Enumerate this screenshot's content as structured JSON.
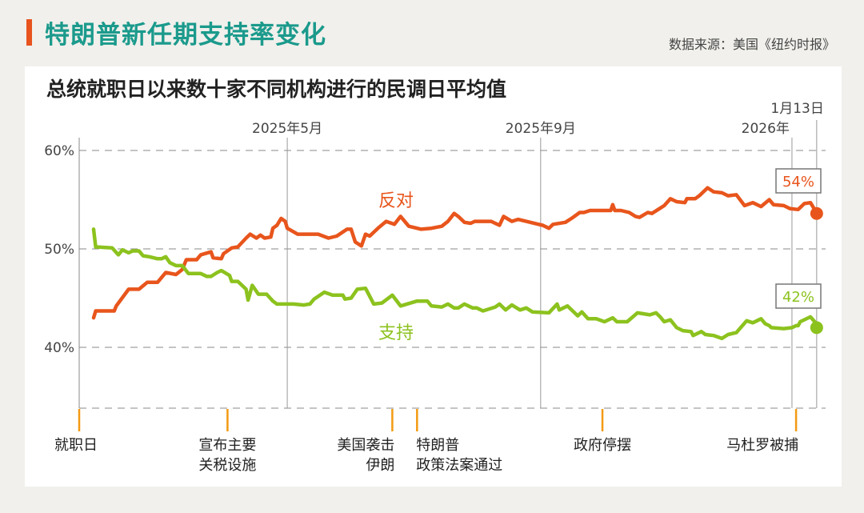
{
  "header": {
    "title": "特朗普新任期支持率变化",
    "source": "数据来源：美国《纽约时报》"
  },
  "colors": {
    "accent": "#e8531e",
    "title": "#1b9a8c",
    "oppose": "#e8551c",
    "approve": "#8cc21e"
  },
  "chart_data": {
    "type": "line",
    "title": "总统就职日以来数十家不同机构进行的民调日平均值",
    "ylim": [
      34,
      61
    ],
    "xlim": [
      "2025-01-20",
      "2026-01-13"
    ],
    "grid": "dashed horizontal",
    "y_ticks": [
      {
        "value": 60,
        "label": "60%"
      },
      {
        "value": 50,
        "label": "50%"
      },
      {
        "value": 40,
        "label": "40%"
      }
    ],
    "x_markers": [
      {
        "date": "2025-05-01",
        "label": "2025年5月"
      },
      {
        "date": "2025-09-01",
        "label": "2025年9月"
      },
      {
        "date": "2026-01-01",
        "label": "2026年"
      },
      {
        "date": "2026-01-13",
        "label": "1月13日"
      }
    ],
    "events": [
      {
        "date": "2025-01-20",
        "lines": [
          "就职日"
        ],
        "align": "start"
      },
      {
        "date": "2025-04-02",
        "lines": [
          "宣布主要",
          "关税设施"
        ],
        "align": "middle"
      },
      {
        "date": "2025-06-21",
        "lines": [
          "美国袭击",
          "伊朗"
        ],
        "align": "end"
      },
      {
        "date": "2025-07-03",
        "lines": [
          "特朗普",
          "政策法案通过"
        ],
        "align": "start"
      },
      {
        "date": "2025-10-01",
        "lines": [
          "政府停摆"
        ],
        "align": "middle"
      },
      {
        "date": "2026-01-03",
        "lines": [
          "马杜罗被捕"
        ],
        "align": "end"
      }
    ],
    "series": [
      {
        "name": "反对",
        "color": "#e8551c",
        "final_label": "54%",
        "points": [
          [
            "2025-01-27",
            43.0
          ],
          [
            "2025-01-28",
            43.7
          ],
          [
            "2025-02-06",
            43.7
          ],
          [
            "2025-02-07",
            44.2
          ],
          [
            "2025-02-13",
            45.9
          ],
          [
            "2025-02-18",
            45.9
          ],
          [
            "2025-02-22",
            46.6
          ],
          [
            "2025-02-27",
            46.6
          ],
          [
            "2025-03-03",
            47.6
          ],
          [
            "2025-03-08",
            47.4
          ],
          [
            "2025-03-11",
            47.9
          ],
          [
            "2025-03-13",
            48.9
          ],
          [
            "2025-03-18",
            48.9
          ],
          [
            "2025-03-20",
            49.4
          ],
          [
            "2025-03-25",
            49.7
          ],
          [
            "2025-03-26",
            49.1
          ],
          [
            "2025-03-30",
            49.0
          ],
          [
            "2025-03-31",
            49.5
          ],
          [
            "2025-04-04",
            50.1
          ],
          [
            "2025-04-07",
            50.2
          ],
          [
            "2025-04-11",
            51.1
          ],
          [
            "2025-04-13",
            51.5
          ],
          [
            "2025-04-16",
            51.1
          ],
          [
            "2025-04-18",
            51.4
          ],
          [
            "2025-04-20",
            51.1
          ],
          [
            "2025-04-23",
            51.2
          ],
          [
            "2025-04-24",
            52.1
          ],
          [
            "2025-04-26",
            52.4
          ],
          [
            "2025-04-28",
            53.1
          ],
          [
            "2025-04-30",
            52.8
          ],
          [
            "2025-05-01",
            52.1
          ],
          [
            "2025-05-06",
            51.5
          ],
          [
            "2025-05-10",
            51.5
          ],
          [
            "2025-05-16",
            51.5
          ],
          [
            "2025-05-21",
            51.1
          ],
          [
            "2025-05-25",
            51.3
          ],
          [
            "2025-05-30",
            52.0
          ],
          [
            "2025-06-01",
            52.0
          ],
          [
            "2025-06-03",
            50.7
          ],
          [
            "2025-06-06",
            50.3
          ],
          [
            "2025-06-08",
            51.5
          ],
          [
            "2025-06-10",
            51.3
          ],
          [
            "2025-06-14",
            52.1
          ],
          [
            "2025-06-18",
            52.8
          ],
          [
            "2025-06-22",
            52.5
          ],
          [
            "2025-06-25",
            53.3
          ],
          [
            "2025-06-29",
            52.3
          ],
          [
            "2025-07-05",
            52.0
          ],
          [
            "2025-07-10",
            52.1
          ],
          [
            "2025-07-15",
            52.3
          ],
          [
            "2025-07-18",
            52.8
          ],
          [
            "2025-07-21",
            53.6
          ],
          [
            "2025-07-23",
            53.3
          ],
          [
            "2025-07-26",
            52.7
          ],
          [
            "2025-07-29",
            52.6
          ],
          [
            "2025-07-31",
            52.8
          ],
          [
            "2025-08-08",
            52.8
          ],
          [
            "2025-08-12",
            52.4
          ],
          [
            "2025-08-14",
            53.3
          ],
          [
            "2025-08-18",
            52.8
          ],
          [
            "2025-08-21",
            53.0
          ],
          [
            "2025-08-25",
            52.8
          ],
          [
            "2025-08-31",
            52.5
          ],
          [
            "2025-09-02",
            52.4
          ],
          [
            "2025-09-05",
            52.1
          ],
          [
            "2025-09-07",
            52.5
          ],
          [
            "2025-09-13",
            52.7
          ],
          [
            "2025-09-16",
            53.1
          ],
          [
            "2025-09-20",
            53.7
          ],
          [
            "2025-09-22",
            53.7
          ],
          [
            "2025-09-25",
            53.9
          ],
          [
            "2025-10-05",
            53.9
          ],
          [
            "2025-10-06",
            54.5
          ],
          [
            "2025-10-07",
            53.9
          ],
          [
            "2025-10-10",
            53.9
          ],
          [
            "2025-10-14",
            53.7
          ],
          [
            "2025-10-17",
            53.3
          ],
          [
            "2025-10-19",
            53.2
          ],
          [
            "2025-10-23",
            53.7
          ],
          [
            "2025-10-25",
            53.6
          ],
          [
            "2025-10-28",
            54.0
          ],
          [
            "2025-10-31",
            54.4
          ],
          [
            "2025-11-03",
            55.1
          ],
          [
            "2025-11-06",
            54.8
          ],
          [
            "2025-11-10",
            54.7
          ],
          [
            "2025-11-11",
            55.1
          ],
          [
            "2025-11-15",
            55.1
          ],
          [
            "2025-11-17",
            55.4
          ],
          [
            "2025-11-21",
            56.2
          ],
          [
            "2025-11-24",
            55.8
          ],
          [
            "2025-11-28",
            55.7
          ],
          [
            "2025-12-01",
            55.4
          ],
          [
            "2025-12-05",
            55.5
          ],
          [
            "2025-12-09",
            54.4
          ],
          [
            "2025-12-13",
            54.7
          ],
          [
            "2025-12-17",
            54.3
          ],
          [
            "2025-12-21",
            55.0
          ],
          [
            "2025-12-23",
            54.5
          ],
          [
            "2025-12-28",
            54.4
          ],
          [
            "2025-12-31",
            54.1
          ],
          [
            "2026-01-04",
            54.0
          ],
          [
            "2026-01-07",
            54.6
          ],
          [
            "2026-01-10",
            54.7
          ],
          [
            "2026-01-12",
            54.0
          ],
          [
            "2026-01-13",
            53.6
          ]
        ]
      },
      {
        "name": "支持",
        "color": "#8cc21e",
        "final_label": "42%",
        "points": [
          [
            "2025-01-27",
            52.0
          ],
          [
            "2025-01-28",
            50.2
          ],
          [
            "2025-02-05",
            50.1
          ],
          [
            "2025-02-08",
            49.4
          ],
          [
            "2025-02-10",
            49.9
          ],
          [
            "2025-02-13",
            49.6
          ],
          [
            "2025-02-15",
            49.8
          ],
          [
            "2025-02-18",
            49.8
          ],
          [
            "2025-02-20",
            49.3
          ],
          [
            "2025-02-23",
            49.2
          ],
          [
            "2025-02-27",
            49.0
          ],
          [
            "2025-03-01",
            49.0
          ],
          [
            "2025-03-03",
            49.2
          ],
          [
            "2025-03-05",
            48.6
          ],
          [
            "2025-03-08",
            48.3
          ],
          [
            "2025-03-11",
            48.3
          ],
          [
            "2025-03-14",
            47.5
          ],
          [
            "2025-03-20",
            47.5
          ],
          [
            "2025-03-23",
            47.2
          ],
          [
            "2025-03-25",
            47.2
          ],
          [
            "2025-03-28",
            47.6
          ],
          [
            "2025-03-30",
            47.8
          ],
          [
            "2025-04-03",
            47.3
          ],
          [
            "2025-04-04",
            46.7
          ],
          [
            "2025-04-07",
            46.7
          ],
          [
            "2025-04-11",
            45.9
          ],
          [
            "2025-04-12",
            44.8
          ],
          [
            "2025-04-14",
            46.3
          ],
          [
            "2025-04-17",
            45.4
          ],
          [
            "2025-04-21",
            45.4
          ],
          [
            "2025-04-24",
            44.7
          ],
          [
            "2025-04-26",
            44.4
          ],
          [
            "2025-04-30",
            44.4
          ],
          [
            "2025-05-04",
            44.4
          ],
          [
            "2025-05-09",
            44.3
          ],
          [
            "2025-05-12",
            44.4
          ],
          [
            "2025-05-14",
            44.9
          ],
          [
            "2025-05-19",
            45.6
          ],
          [
            "2025-05-23",
            45.3
          ],
          [
            "2025-05-28",
            45.3
          ],
          [
            "2025-05-29",
            44.9
          ],
          [
            "2025-06-01",
            45.0
          ],
          [
            "2025-06-04",
            45.9
          ],
          [
            "2025-06-08",
            46.0
          ],
          [
            "2025-06-12",
            44.4
          ],
          [
            "2025-06-16",
            44.5
          ],
          [
            "2025-06-21",
            45.3
          ],
          [
            "2025-06-25",
            44.2
          ],
          [
            "2025-07-03",
            44.7
          ],
          [
            "2025-07-08",
            44.7
          ],
          [
            "2025-07-10",
            44.2
          ],
          [
            "2025-07-15",
            44.1
          ],
          [
            "2025-07-18",
            44.4
          ],
          [
            "2025-07-21",
            44.0
          ],
          [
            "2025-07-23",
            44.0
          ],
          [
            "2025-07-26",
            44.4
          ],
          [
            "2025-07-30",
            44.0
          ],
          [
            "2025-08-01",
            44.0
          ],
          [
            "2025-08-04",
            43.7
          ],
          [
            "2025-08-10",
            44.1
          ],
          [
            "2025-08-12",
            44.4
          ],
          [
            "2025-08-15",
            43.8
          ],
          [
            "2025-08-18",
            44.3
          ],
          [
            "2025-08-22",
            43.8
          ],
          [
            "2025-08-25",
            44.0
          ],
          [
            "2025-08-28",
            43.6
          ],
          [
            "2025-09-05",
            43.5
          ],
          [
            "2025-09-09",
            44.4
          ],
          [
            "2025-09-10",
            43.8
          ],
          [
            "2025-09-14",
            44.2
          ],
          [
            "2025-09-19",
            43.2
          ],
          [
            "2025-09-21",
            43.6
          ],
          [
            "2025-09-24",
            42.9
          ],
          [
            "2025-09-28",
            42.9
          ],
          [
            "2025-10-02",
            42.6
          ],
          [
            "2025-10-06",
            43.0
          ],
          [
            "2025-10-08",
            42.6
          ],
          [
            "2025-10-13",
            42.6
          ],
          [
            "2025-10-18",
            43.5
          ],
          [
            "2025-10-24",
            43.3
          ],
          [
            "2025-10-27",
            43.5
          ],
          [
            "2025-10-29",
            43.1
          ],
          [
            "2025-10-31",
            42.6
          ],
          [
            "2025-11-03",
            42.8
          ],
          [
            "2025-11-06",
            42.0
          ],
          [
            "2025-11-09",
            41.7
          ],
          [
            "2025-11-13",
            41.6
          ],
          [
            "2025-11-14",
            41.2
          ],
          [
            "2025-11-18",
            41.6
          ],
          [
            "2025-11-20",
            41.3
          ],
          [
            "2025-11-24",
            41.2
          ],
          [
            "2025-11-28",
            40.9
          ],
          [
            "2025-12-01",
            41.3
          ],
          [
            "2025-12-05",
            41.5
          ],
          [
            "2025-12-10",
            42.7
          ],
          [
            "2025-12-13",
            42.5
          ],
          [
            "2025-12-17",
            42.9
          ],
          [
            "2025-12-19",
            42.4
          ],
          [
            "2025-12-21",
            42.2
          ],
          [
            "2025-12-22",
            42.0
          ],
          [
            "2025-12-28",
            41.9
          ],
          [
            "2026-01-01",
            42.0
          ],
          [
            "2026-01-03",
            42.2
          ],
          [
            "2026-01-04",
            42.2
          ],
          [
            "2026-01-05",
            42.6
          ],
          [
            "2026-01-10",
            43.1
          ],
          [
            "2026-01-12",
            42.6
          ],
          [
            "2026-01-13",
            42.0
          ]
        ]
      }
    ]
  }
}
